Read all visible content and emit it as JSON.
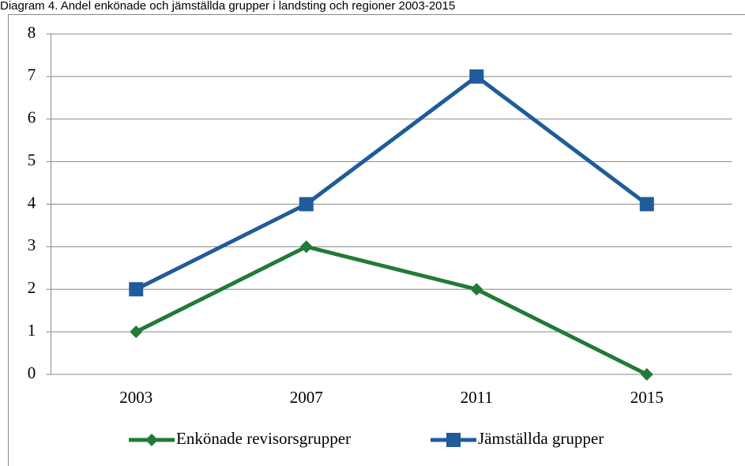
{
  "chart_data": {
    "type": "line",
    "title": "Diagram 4. Andel enkönade och jämställda grupper i landsting och regioner 2003-2015",
    "categories": [
      "2003",
      "2007",
      "2011",
      "2015"
    ],
    "series": [
      {
        "name": "Enkönade revisorsgrupper",
        "color": "#217a36",
        "marker": "diamond",
        "values": [
          1,
          3,
          2,
          0
        ]
      },
      {
        "name": "Jämställda grupper",
        "color": "#1f5c99",
        "marker": "square",
        "values": [
          2,
          4,
          7,
          4
        ]
      }
    ],
    "ylim": [
      0,
      8
    ],
    "yticks": [
      0,
      1,
      2,
      3,
      4,
      5,
      6,
      7,
      8
    ],
    "grid": true,
    "legend": "bottom"
  }
}
